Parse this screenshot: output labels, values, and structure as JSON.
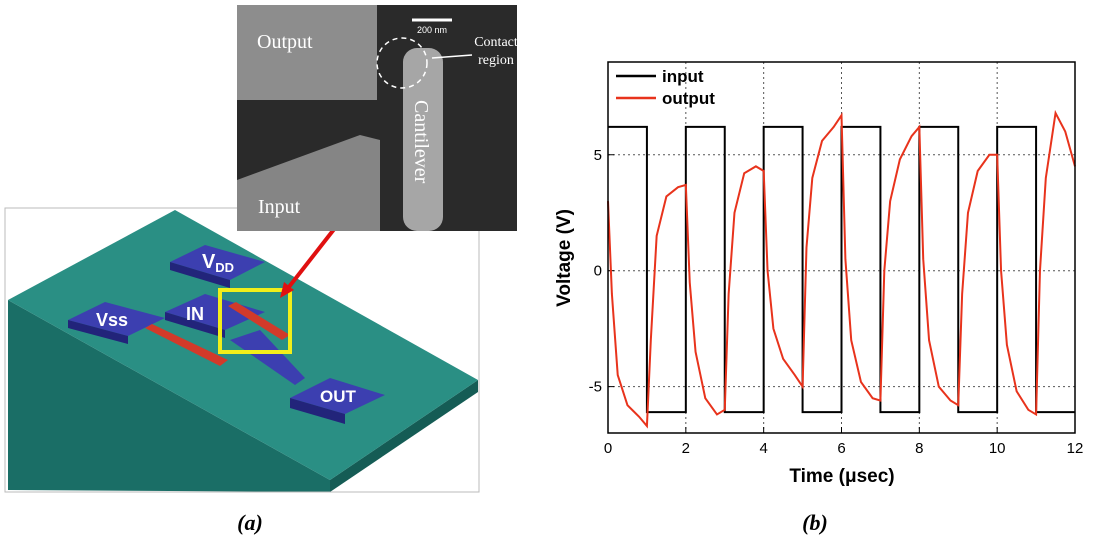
{
  "panel_a": {
    "sem_labels": {
      "output": "Output",
      "input": "Input",
      "cantilever": "Cantilever",
      "contact": "Contact region",
      "scale": "200 nm"
    },
    "pads": {
      "vdd_main": "V",
      "vdd_sub": "DD",
      "vss": "Vss",
      "in": "IN",
      "out": "OUT"
    },
    "caption": "(a)"
  },
  "caption_b": "(b)",
  "chart_data": {
    "type": "line",
    "x_label": "Time (μsec)",
    "y_label": "Voltage (V)",
    "xlim": [
      0,
      12
    ],
    "xticks": [
      0,
      2,
      4,
      6,
      8,
      10,
      12
    ],
    "ylim": [
      -7,
      9
    ],
    "yticks": [
      -5,
      0,
      5
    ],
    "grid": true,
    "legend": "top-left",
    "series": [
      {
        "name": "input",
        "color": "#000000",
        "x": [
          0,
          1,
          1,
          2,
          2,
          3,
          3,
          4,
          4,
          5,
          5,
          6,
          6,
          7,
          7,
          8,
          8,
          9,
          9,
          10,
          10,
          11,
          11,
          12
        ],
        "values": [
          6.2,
          6.2,
          -6.1,
          -6.1,
          6.2,
          6.2,
          -6.1,
          -6.1,
          6.2,
          6.2,
          -6.1,
          -6.1,
          6.2,
          6.2,
          -6.1,
          -6.1,
          6.2,
          6.2,
          -6.1,
          -6.1,
          6.2,
          6.2,
          -6.1,
          -6.1
        ]
      },
      {
        "name": "output",
        "color": "#e8331c",
        "x": [
          0,
          0.1,
          0.25,
          0.5,
          0.8,
          1.0,
          1.1,
          1.25,
          1.5,
          1.8,
          2.0,
          2.1,
          2.25,
          2.5,
          2.8,
          3.0,
          3.1,
          3.25,
          3.5,
          3.8,
          4.0,
          4.1,
          4.25,
          4.5,
          4.8,
          5.0,
          5.1,
          5.25,
          5.5,
          5.8,
          6.0,
          6.1,
          6.25,
          6.5,
          6.8,
          7.0,
          7.1,
          7.25,
          7.5,
          7.8,
          8.0,
          8.1,
          8.25,
          8.5,
          8.8,
          9.0,
          9.1,
          9.25,
          9.5,
          9.8,
          10.0,
          10.1,
          10.25,
          10.5,
          10.8,
          11.0,
          11.1,
          11.25,
          11.5,
          11.75,
          12.0
        ],
        "values": [
          3,
          -1,
          -4.5,
          -5.8,
          -6.3,
          -6.7,
          -3,
          1.5,
          3.2,
          3.6,
          3.7,
          -0.5,
          -3.5,
          -5.5,
          -6.2,
          -6.0,
          -1,
          2.5,
          4.2,
          4.5,
          4.3,
          0,
          -2.5,
          -3.8,
          -4.5,
          -5.0,
          1,
          4,
          5.6,
          6.2,
          6.7,
          0.5,
          -3,
          -4.8,
          -5.5,
          -5.6,
          0,
          3,
          4.8,
          5.8,
          6.2,
          0.5,
          -3,
          -5.0,
          -5.6,
          -5.8,
          -1,
          2.5,
          4.3,
          5.0,
          5.0,
          0,
          -3.2,
          -5.2,
          -6.0,
          -6.2,
          0,
          4,
          6.8,
          6.0,
          4.5
        ]
      }
    ]
  }
}
